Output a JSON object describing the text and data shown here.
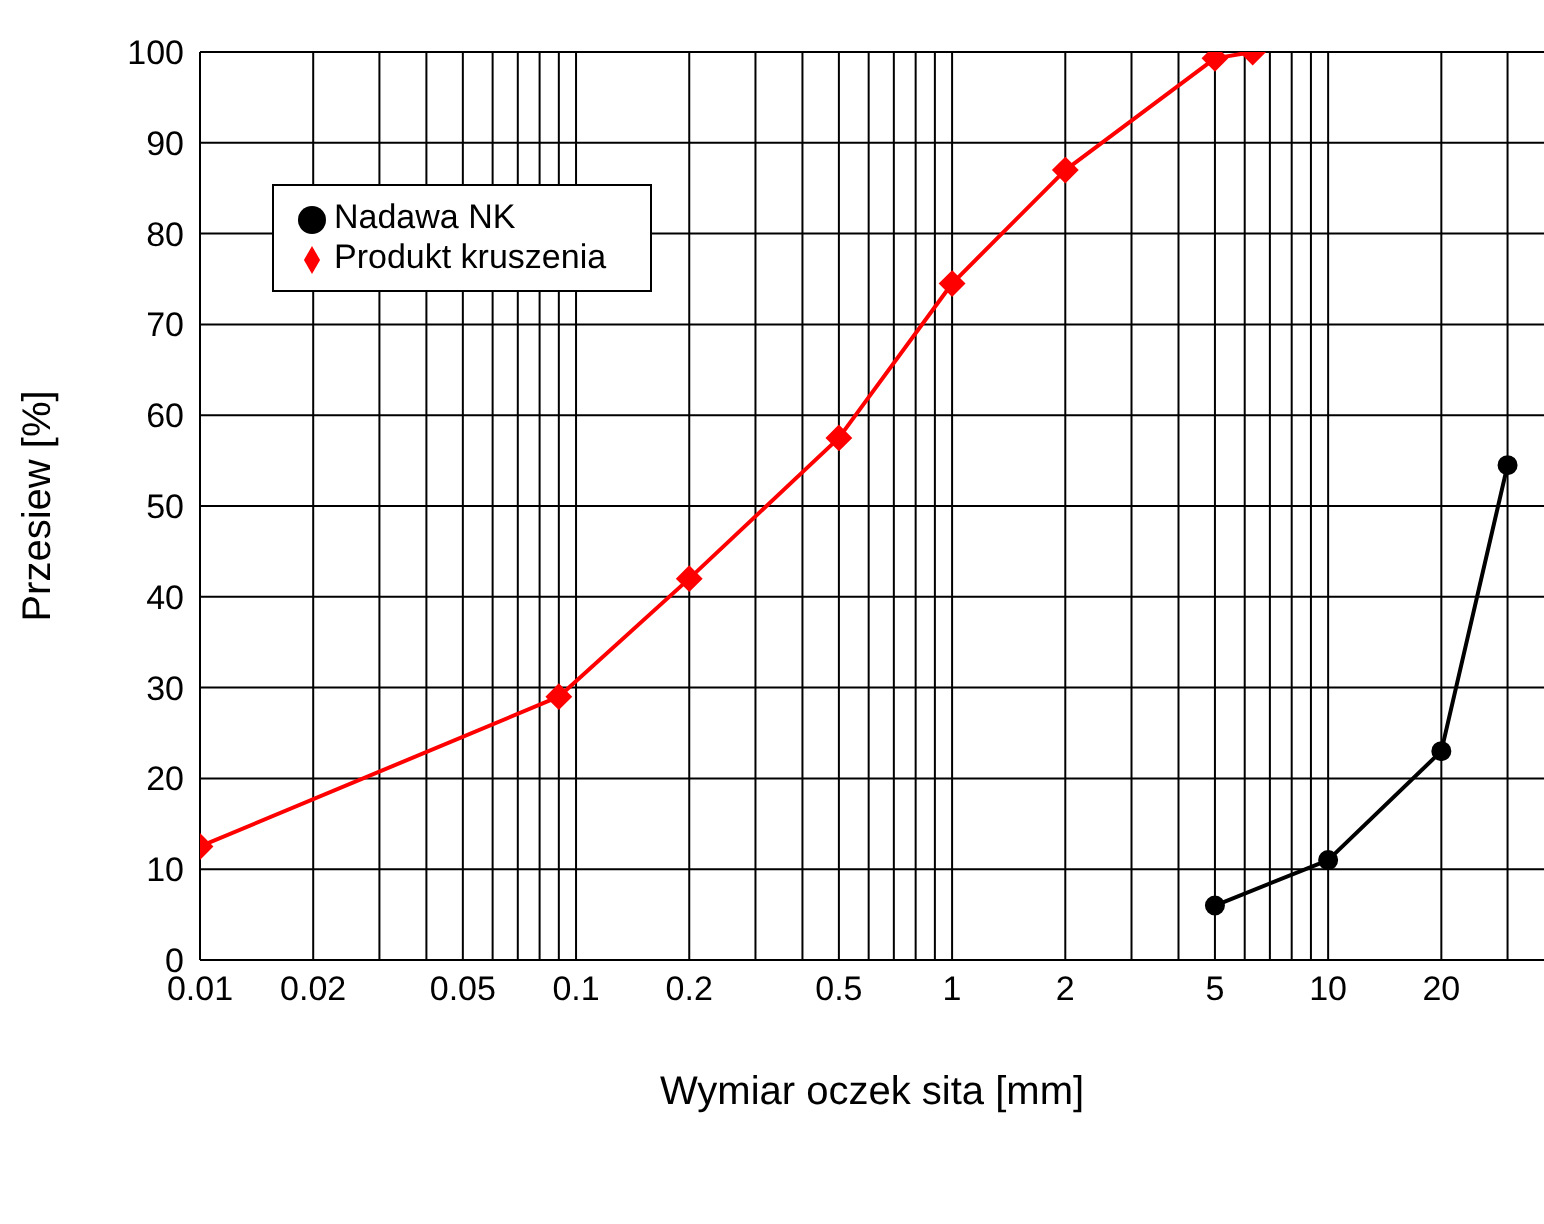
{
  "chart_data": {
    "type": "line",
    "xlabel": "Wymiar oczek sita [mm]",
    "ylabel": "Przesiew [%]",
    "log": "x",
    "xlim": [
      0.01,
      37.5
    ],
    "ylim": [
      0,
      100
    ],
    "xticks": [
      0.01,
      0.02,
      {
        "value": 0.03,
        "label": null
      },
      {
        "value": 0.04,
        "label": null
      },
      0.05,
      {
        "value": 0.06,
        "label": null
      },
      {
        "value": 0.07,
        "label": null
      },
      {
        "value": 0.08,
        "label": null
      },
      {
        "value": 0.09,
        "label": null
      },
      0.1,
      0.2,
      {
        "value": 0.3,
        "label": null
      },
      {
        "value": 0.4,
        "label": null
      },
      0.5,
      {
        "value": 0.6,
        "label": null
      },
      {
        "value": 0.7,
        "label": null
      },
      {
        "value": 0.8,
        "label": null
      },
      {
        "value": 0.9,
        "label": null
      },
      1,
      2,
      {
        "value": 3,
        "label": null
      },
      {
        "value": 4,
        "label": null
      },
      5,
      {
        "value": 6,
        "label": null
      },
      {
        "value": 7,
        "label": null
      },
      {
        "value": 8,
        "label": null
      },
      {
        "value": 9,
        "label": null
      },
      10,
      20,
      {
        "value": 30,
        "label": null
      }
    ],
    "yticks": [
      0,
      10,
      20,
      30,
      40,
      50,
      60,
      70,
      80,
      90,
      100
    ],
    "grid": true,
    "legend": "top left",
    "series": [
      {
        "name": "Nadawa NK",
        "color": "#000000",
        "marker": "circle",
        "x": [
          5,
          10,
          20,
          30
        ],
        "values": [
          6,
          11,
          23,
          54.5
        ]
      },
      {
        "name": "Produkt kruszenia",
        "color": "#ff0000",
        "marker": "diamond",
        "x": [
          0.01,
          0.09,
          0.2,
          0.5,
          1,
          2,
          5,
          6.3
        ],
        "values": [
          12.5,
          29,
          42,
          57.5,
          74.5,
          87,
          99.3,
          100
        ]
      }
    ]
  }
}
